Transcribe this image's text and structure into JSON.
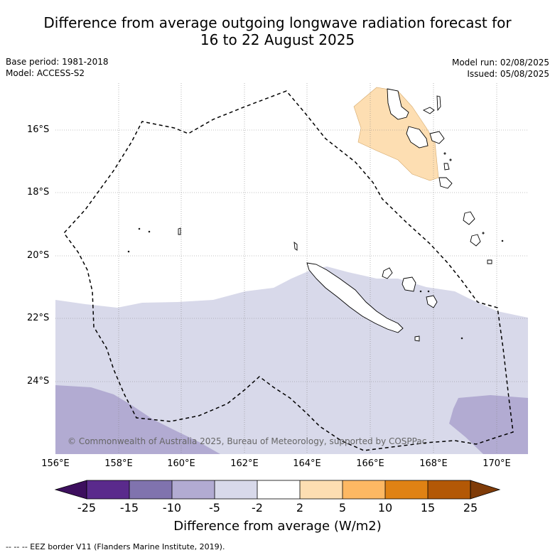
{
  "title_line1": "Difference from average outgoing longwave radiation forecast for",
  "title_line2": "16 to 22 August 2025",
  "meta_left": [
    "Base period: 1981-2018",
    "Model: ACCESS-S2"
  ],
  "meta_right": [
    "Model run: 02/08/2025",
    "Issued: 05/08/2025"
  ],
  "lat_ticks": [
    "16°S",
    "18°S",
    "20°S",
    "22°S",
    "24°S"
  ],
  "lon_ticks": [
    "156°E",
    "158°E",
    "160°E",
    "162°E",
    "164°E",
    "166°E",
    "168°E",
    "170°E"
  ],
  "copyright": "© Commonwealth of Australia 2025, Bureau of Meteorology, supported by COSPPac",
  "colorbar": {
    "labels": [
      "-25",
      "-15",
      "-10",
      "-5",
      "-2",
      "2",
      "5",
      "10",
      "15",
      "25"
    ],
    "colors": [
      "#3d0f5e",
      "#5a2a8c",
      "#8073ae",
      "#b2abd2",
      "#d8d9ea",
      "#ffffff",
      "#fddeb2",
      "#fdb863",
      "#e08214",
      "#b35806",
      "#7f3b08"
    ],
    "title": "Difference from average (W/m2)"
  },
  "footnote": "--  --  -- EEZ border V11 (Flanders Marine Institute, 2019).",
  "map_fill_colors": {
    "light_negative": "#d8d9ea",
    "moderate_negative": "#b2abd2",
    "light_positive": "#fddeb2"
  }
}
